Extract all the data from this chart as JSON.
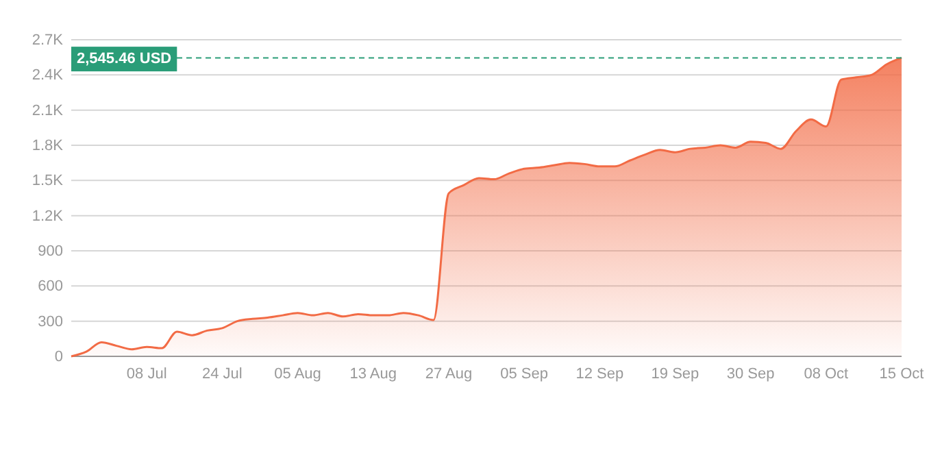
{
  "chart_data": {
    "type": "area",
    "categories": [
      null,
      null,
      null,
      null,
      null,
      "08 Jul",
      null,
      null,
      null,
      null,
      "24 Jul",
      null,
      null,
      null,
      null,
      "05 Aug",
      null,
      null,
      null,
      null,
      "13 Aug",
      null,
      null,
      null,
      null,
      "27 Aug",
      null,
      null,
      null,
      null,
      "05 Sep",
      null,
      null,
      null,
      null,
      "12 Sep",
      null,
      null,
      null,
      null,
      "19 Sep",
      null,
      null,
      null,
      null,
      "30 Sep",
      null,
      null,
      null,
      null,
      "08 Oct",
      null,
      null,
      null,
      null,
      "15 Oct"
    ],
    "series": [
      {
        "color": "#f26b45",
        "values": [
          0,
          40,
          120,
          90,
          60,
          80,
          70,
          210,
          180,
          220,
          240,
          300,
          320,
          330,
          350,
          370,
          350,
          370,
          340,
          360,
          350,
          350,
          370,
          350,
          310,
          1390,
          1460,
          1520,
          1510,
          1560,
          1600,
          1610,
          1630,
          1650,
          1640,
          1620,
          1620,
          1670,
          1720,
          1760,
          1740,
          1770,
          1780,
          1800,
          1780,
          1830,
          1820,
          1770,
          1920,
          2020,
          1960,
          2360,
          2380,
          2400,
          2490,
          2545.46
        ]
      }
    ],
    "ylim": [
      0,
      2700
    ],
    "yticks": [
      0,
      300,
      600,
      900,
      {
        "value": 1200,
        "label": "1.2K"
      },
      {
        "value": 1500,
        "label": "1.5K"
      },
      {
        "value": 1800,
        "label": "1.8K"
      },
      {
        "value": 2100,
        "label": "2.1K"
      },
      {
        "value": 2400,
        "label": "2.4K"
      },
      {
        "value": 2700,
        "label": "2.7K"
      }
    ],
    "grid": "y",
    "ref_lines": [
      {
        "axis": "y",
        "value": 2545.46,
        "label": "2,545.46 USD",
        "color": "#2a9d78",
        "line_style": "dashed"
      }
    ]
  }
}
